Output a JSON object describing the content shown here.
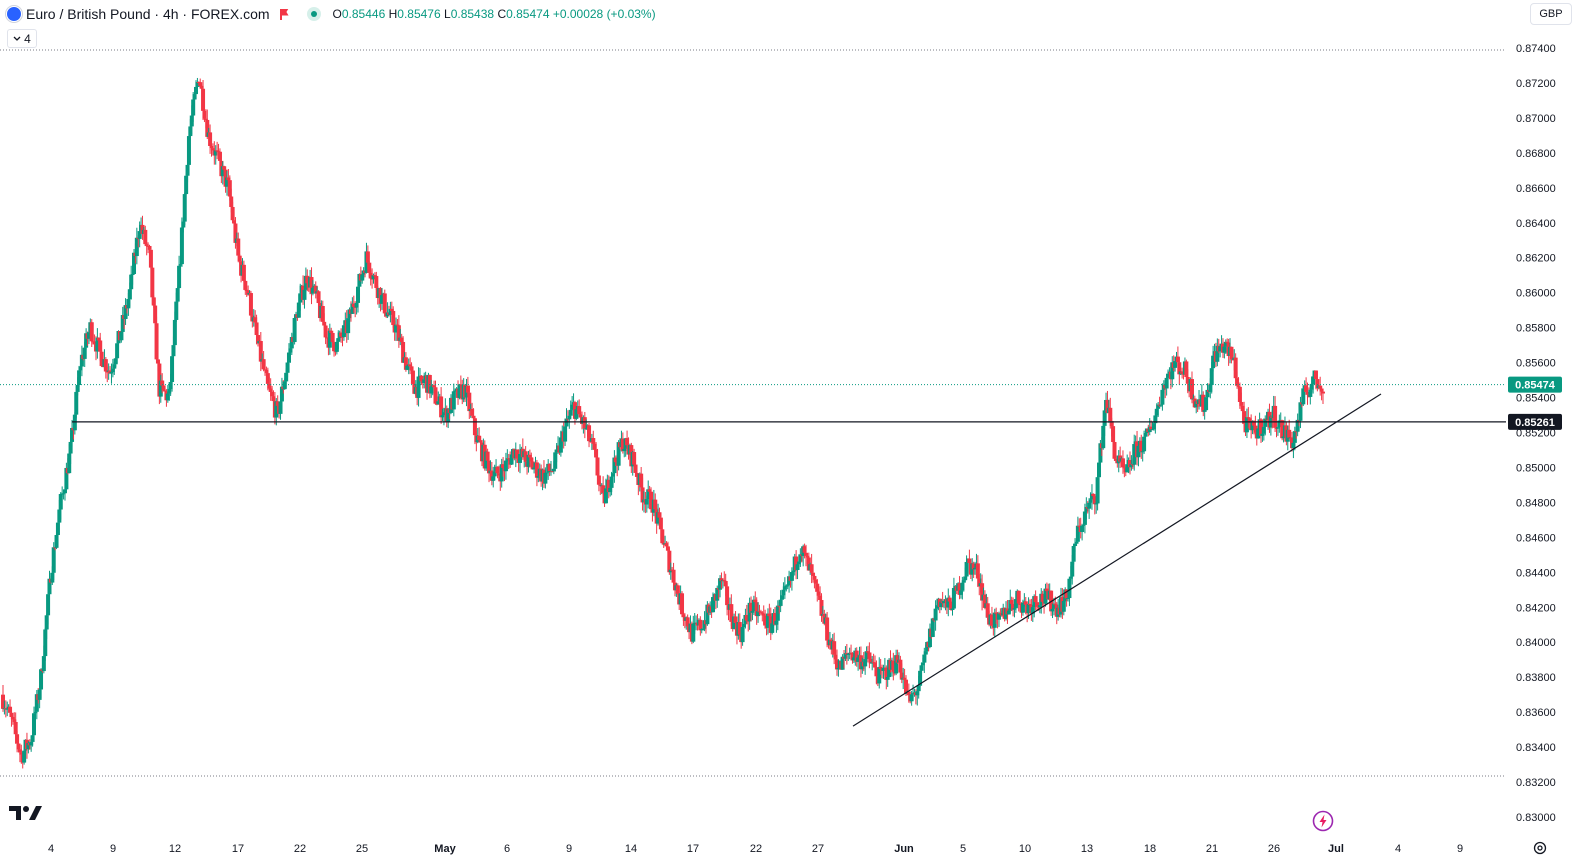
{
  "header": {
    "title": "Euro / British Pound · 4h · FOREX.com",
    "ohlc": [
      {
        "k": "O",
        "v": "0.85446"
      },
      {
        "k": "H",
        "v": "0.85476"
      },
      {
        "k": "L",
        "v": "0.85438"
      },
      {
        "k": "C",
        "v": "0.85474"
      }
    ],
    "change": "+0.00028 (+0.03%)",
    "indicator_count": "4",
    "currency": "GBP"
  },
  "icons": {
    "market": "globe-flag-icon",
    "flag": "red-flag-icon",
    "status": "market-open-dot-icon",
    "toggle": "chevron-down-icon",
    "logo": "tradingview-logo-icon",
    "alert": "lightning-icon",
    "settings": "gear-icon"
  },
  "colors": {
    "up": "#089981",
    "down": "#f23645",
    "current_price_tag": "#089981",
    "level_tag": "#131722",
    "lines": "#131722"
  },
  "chart_data": {
    "type": "candlestick",
    "interval": "4h",
    "ylim": [
      0.83,
      0.8745
    ],
    "y_ticks": [
      "0.87400",
      "0.87200",
      "0.87000",
      "0.86800",
      "0.86600",
      "0.86400",
      "0.86200",
      "0.86000",
      "0.85800",
      "0.85600",
      "0.85400",
      "0.85200",
      "0.85000",
      "0.84800",
      "0.84600",
      "0.84400",
      "0.84200",
      "0.84000",
      "0.83800",
      "0.83600",
      "0.83400",
      "0.83200",
      "0.83000"
    ],
    "x_ticks": [
      "4",
      "9",
      "12",
      "17",
      "22",
      "25",
      "May",
      "6",
      "9",
      "14",
      "17",
      "22",
      "27",
      "Jun",
      "5",
      "10",
      "13",
      "18",
      "21",
      "26",
      "Jul",
      "4",
      "9"
    ],
    "price_path": [
      [
        0.837,
        0.8355,
        0.8335,
        0.8345,
        0.838,
        0.844,
        0.848,
        0.851,
        0.856,
        0.858,
        0.8565,
        0.8555,
        0.8575,
        0.86,
        0.864,
        0.862,
        0.8545,
        0.854,
        0.861,
        0.869,
        0.8725,
        0.869,
        0.8675,
        0.866,
        0.862,
        0.86,
        0.857,
        0.8545,
        0.853,
        0.856,
        0.859,
        0.861,
        0.8595,
        0.8575,
        0.857,
        0.858,
        0.86,
        0.862,
        0.8605,
        0.859,
        0.858,
        0.856,
        0.8545,
        0.855,
        0.854,
        0.853,
        0.854,
        0.8545,
        0.852,
        0.8505,
        0.8495,
        0.85,
        0.851,
        0.8505,
        0.85,
        0.8495,
        0.85,
        0.852,
        0.8535,
        0.8525,
        0.851,
        0.848,
        0.85,
        0.8515,
        0.8505,
        0.8485,
        0.848,
        0.846,
        0.844,
        0.842,
        0.8405,
        0.841,
        0.842,
        0.8435,
        0.8415,
        0.8405,
        0.842,
        0.8415,
        0.841,
        0.842,
        0.8435,
        0.8455,
        0.844,
        0.842,
        0.84,
        0.8385,
        0.8395,
        0.839,
        0.839,
        0.838,
        0.8385,
        0.839,
        0.8365,
        0.8375,
        0.84,
        0.8425,
        0.842,
        0.843,
        0.8445,
        0.844,
        0.8415,
        0.841,
        0.842,
        0.8425,
        0.842,
        0.8425,
        0.8425,
        0.842,
        0.8425,
        0.846,
        0.8475,
        0.8485,
        0.854,
        0.8505,
        0.8495,
        0.851,
        0.8515,
        0.853,
        0.855,
        0.856,
        0.8555,
        0.854,
        0.8535,
        0.8565,
        0.857,
        0.856,
        0.8525,
        0.852,
        0.8525,
        0.853,
        0.852,
        0.8515,
        0.854,
        0.855,
        0.8547
      ]
    ],
    "annotations": [
      {
        "type": "horizontal",
        "price": 0.85261,
        "label": "0.85261"
      },
      {
        "type": "current_price",
        "price": 0.85474,
        "label": "0.85474"
      },
      {
        "type": "trendline",
        "from": {
          "bar": 0.0,
          "price": 0.8352
        },
        "to": {
          "bar": 1.0,
          "price": 0.8541
        }
      }
    ],
    "grid": false,
    "legend": "top-left"
  }
}
